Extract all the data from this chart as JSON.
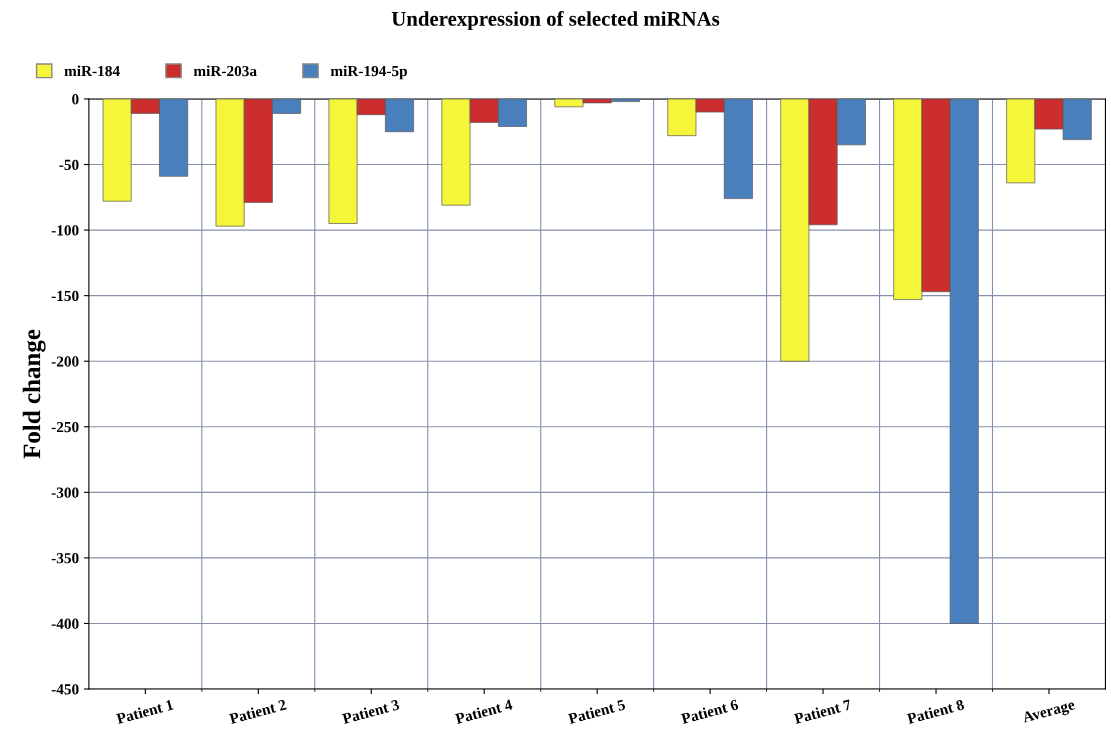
{
  "chart_data": {
    "type": "bar",
    "title": "Underexpression of selected miRNAs",
    "ylabel": "Fold change",
    "categories": [
      "Patient 1",
      "Patient 2",
      "Patient 3",
      "Patient 4",
      "Patient 5",
      "Patient 6",
      "Patient 7",
      "Patient 8",
      "Average"
    ],
    "series": [
      {
        "name": "miR-184",
        "color": "#f5f53a",
        "values": [
          -78,
          -97,
          -95,
          -81,
          -6,
          -28,
          -200,
          -153,
          -64
        ]
      },
      {
        "name": "miR-203a",
        "color": "#cc2e2e",
        "values": [
          -11,
          -79,
          -12,
          -18,
          -3,
          -10,
          -96,
          -147,
          -23
        ]
      },
      {
        "name": "miR-194-5p",
        "color": "#4a7fbd",
        "values": [
          -59,
          -11,
          -25,
          -21,
          -2,
          -76,
          -35,
          -400,
          -31
        ]
      }
    ],
    "ylim": [
      -450,
      0
    ],
    "yticks": [
      -450,
      -400,
      -350,
      -300,
      -250,
      -200,
      -150,
      -100,
      -50,
      0
    ],
    "grid": true,
    "legend": "top left"
  }
}
